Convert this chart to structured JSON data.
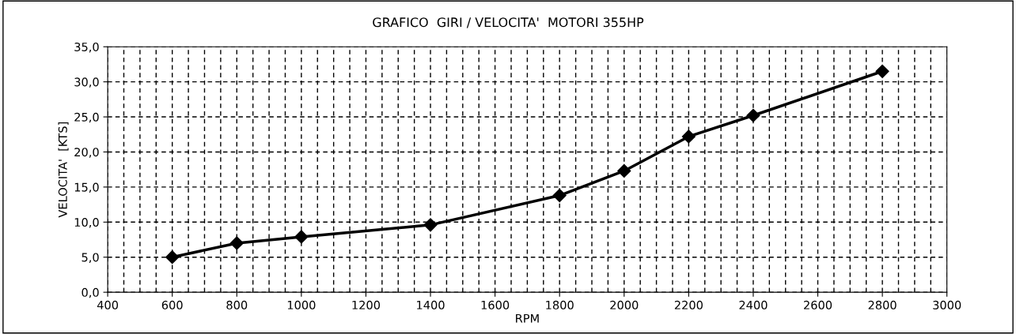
{
  "chart_data": {
    "type": "line",
    "title": "GRAFICO  GIRI / VELOCITA'  MOTORI 355HP",
    "xlabel": "RPM",
    "ylabel": "VELOCITA'  [KTS]",
    "x": [
      600,
      800,
      1000,
      1400,
      1800,
      2000,
      2200,
      2400,
      2800
    ],
    "series": [
      {
        "color": "#000000",
        "values": [
          5.0,
          7.0,
          7.9,
          9.6,
          13.8,
          17.3,
          22.2,
          25.2,
          31.5
        ]
      }
    ],
    "marker": "diamond",
    "line_style": "solid",
    "grid": true,
    "legend": false,
    "xlim": [
      400,
      3000
    ],
    "ylim": [
      0,
      35
    ],
    "xticks": [
      400,
      {
        "value": 450,
        "label": null
      },
      {
        "value": 500,
        "label": null
      },
      {
        "value": 550,
        "label": null
      },
      600,
      {
        "value": 650,
        "label": null
      },
      {
        "value": 700,
        "label": null
      },
      {
        "value": 750,
        "label": null
      },
      800,
      {
        "value": 850,
        "label": null
      },
      {
        "value": 900,
        "label": null
      },
      {
        "value": 950,
        "label": null
      },
      1000,
      {
        "value": 1050,
        "label": null
      },
      {
        "value": 1100,
        "label": null
      },
      {
        "value": 1150,
        "label": null
      },
      1200,
      {
        "value": 1250,
        "label": null
      },
      {
        "value": 1300,
        "label": null
      },
      {
        "value": 1350,
        "label": null
      },
      1400,
      {
        "value": 1450,
        "label": null
      },
      {
        "value": 1500,
        "label": null
      },
      {
        "value": 1550,
        "label": null
      },
      1600,
      {
        "value": 1650,
        "label": null
      },
      {
        "value": 1700,
        "label": null
      },
      {
        "value": 1750,
        "label": null
      },
      1800,
      {
        "value": 1850,
        "label": null
      },
      {
        "value": 1900,
        "label": null
      },
      {
        "value": 1950,
        "label": null
      },
      2000,
      {
        "value": 2050,
        "label": null
      },
      {
        "value": 2100,
        "label": null
      },
      {
        "value": 2150,
        "label": null
      },
      2200,
      {
        "value": 2250,
        "label": null
      },
      {
        "value": 2300,
        "label": null
      },
      {
        "value": 2350,
        "label": null
      },
      2400,
      {
        "value": 2450,
        "label": null
      },
      {
        "value": 2500,
        "label": null
      },
      {
        "value": 2550,
        "label": null
      },
      2600,
      {
        "value": 2650,
        "label": null
      },
      {
        "value": 2700,
        "label": null
      },
      {
        "value": 2750,
        "label": null
      },
      2800,
      {
        "value": 2850,
        "label": null
      },
      {
        "value": 2900,
        "label": null
      },
      {
        "value": 2950,
        "label": null
      },
      3000
    ],
    "yticks": [
      {
        "value": 0,
        "label": "0,0"
      },
      {
        "value": 5,
        "label": "5,0"
      },
      {
        "value": 10,
        "label": "10,0"
      },
      {
        "value": 15,
        "label": "15,0"
      },
      {
        "value": 20,
        "label": "20,0"
      },
      {
        "value": 25,
        "label": "25,0"
      },
      {
        "value": 30,
        "label": "30,0"
      },
      {
        "value": 35,
        "label": "35,0"
      }
    ]
  }
}
